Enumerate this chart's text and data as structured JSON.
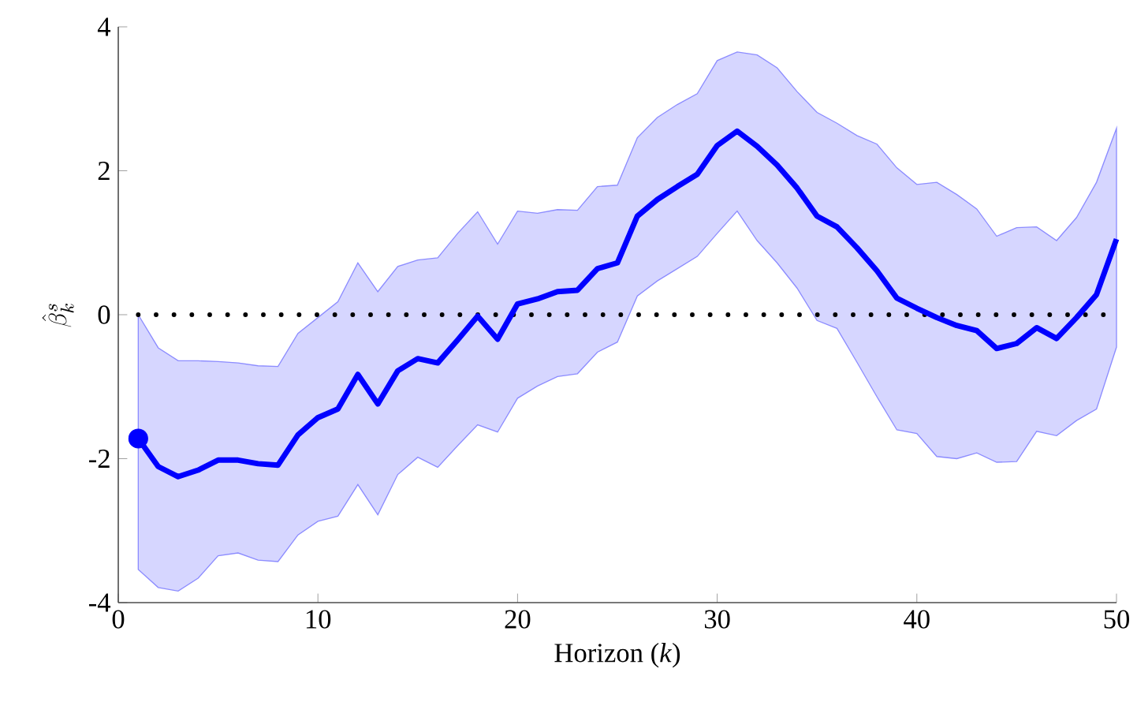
{
  "chart_data": {
    "type": "line",
    "xlabel": "Horizon (*k*)",
    "ylabel": "\\hat{\\beta}^s_k",
    "x": [
      1,
      2,
      3,
      4,
      5,
      6,
      7,
      8,
      9,
      10,
      11,
      12,
      13,
      14,
      15,
      16,
      17,
      18,
      19,
      20,
      21,
      22,
      23,
      24,
      25,
      26,
      27,
      28,
      29,
      30,
      31,
      32,
      33,
      34,
      35,
      36,
      37,
      38,
      39,
      40,
      41,
      42,
      43,
      44,
      45,
      46,
      47,
      48,
      49,
      50
    ],
    "series": [
      {
        "color": "#0000ff",
        "values": [
          -1.72,
          -2.11,
          -2.25,
          -2.16,
          -2.02,
          -2.02,
          -2.07,
          -2.09,
          -1.67,
          -1.43,
          -1.31,
          -0.83,
          -1.24,
          -0.78,
          -0.61,
          -0.67,
          -0.35,
          -0.02,
          -0.34,
          0.15,
          0.22,
          0.32,
          0.34,
          0.64,
          0.72,
          1.37,
          1.6,
          1.78,
          1.95,
          2.35,
          2.55,
          2.34,
          2.08,
          1.76,
          1.37,
          1.22,
          0.93,
          0.61,
          0.23,
          0.09,
          -0.04,
          -0.15,
          -0.22,
          -0.47,
          -0.4,
          -0.18,
          -0.33,
          -0.04,
          0.28,
          1.05
        ],
        "lower": [
          -3.54,
          -3.79,
          -3.84,
          -3.66,
          -3.35,
          -3.31,
          -3.41,
          -3.43,
          -3.06,
          -2.87,
          -2.8,
          -2.36,
          -2.78,
          -2.22,
          -1.98,
          -2.12,
          -1.82,
          -1.53,
          -1.63,
          -1.16,
          -0.99,
          -0.86,
          -0.82,
          -0.52,
          -0.38,
          0.26,
          0.47,
          0.64,
          0.81,
          1.13,
          1.44,
          1.03,
          0.72,
          0.37,
          -0.08,
          -0.19,
          -0.66,
          -1.14,
          -1.6,
          -1.65,
          -1.97,
          -2.0,
          -1.92,
          -2.05,
          -2.04,
          -1.62,
          -1.68,
          -1.47,
          -1.31,
          -0.45
        ],
        "upper": [
          0.0,
          -0.46,
          -0.64,
          -0.64,
          -0.65,
          -0.67,
          -0.71,
          -0.72,
          -0.26,
          -0.04,
          0.18,
          0.72,
          0.32,
          0.67,
          0.76,
          0.79,
          1.13,
          1.43,
          0.98,
          1.44,
          1.41,
          1.46,
          1.45,
          1.78,
          1.8,
          2.46,
          2.74,
          2.92,
          3.07,
          3.53,
          3.65,
          3.61,
          3.43,
          3.1,
          2.81,
          2.66,
          2.49,
          2.37,
          2.04,
          1.81,
          1.84,
          1.67,
          1.47,
          1.09,
          1.21,
          1.22,
          1.03,
          1.35,
          1.84,
          2.59
        ]
      },
      {
        "type": "scatter",
        "color": "#0000ff",
        "marker": "circle",
        "x": [
          1
        ],
        "values": [
          -1.72
        ]
      }
    ],
    "xlim": [
      0,
      50
    ],
    "ylim": [
      -4,
      4
    ],
    "xticks": [
      0,
      10,
      20,
      30,
      40,
      50
    ],
    "yticks": [
      -4,
      -2,
      0,
      2,
      4
    ],
    "ref_lines": [
      {
        "axis": "y",
        "value": 0,
        "color": "#000000",
        "line_style": "dotted"
      }
    ]
  }
}
